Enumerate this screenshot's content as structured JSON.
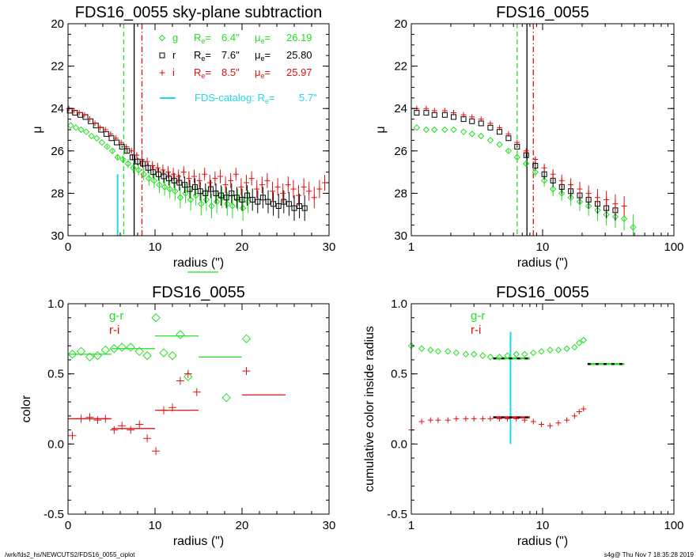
{
  "colors": {
    "g": "#22e022",
    "r": "#000000",
    "i": "#e01010",
    "catalog": "#22d8e8"
  },
  "footer": {
    "left": "/wrk/fds2_hs/NEWCUTS2/FDS16_0055_ciplot",
    "right": "s4g@  Thu Nov  7 18:35:28 2019"
  },
  "chart_data": [
    {
      "type": "scatter",
      "title": "FDS16_0055 sky-plane subtraction",
      "xlabel": "radius (\")",
      "ylabel": "μ",
      "xlim": [
        0,
        30
      ],
      "ylim": [
        30,
        20
      ],
      "xscale": "linear",
      "xticks": [
        0,
        10,
        20,
        30
      ],
      "yticks": [
        20,
        22,
        24,
        26,
        28,
        30
      ],
      "legend": {
        "entries": [
          {
            "band": "g",
            "marker": "diamond",
            "Re": "6.4\"",
            "mue": "26.19"
          },
          {
            "band": "r",
            "marker": "square",
            "Re": "7.6\"",
            "mue": "25.80"
          },
          {
            "band": "i",
            "marker": "plus",
            "Re": "8.5\"",
            "mue": "25.97"
          }
        ],
        "catalog_label": "FDS-catalog: R",
        "catalog_value": "5.7\""
      },
      "vlines": [
        {
          "x": 6.4,
          "band": "g",
          "style": "dashed"
        },
        {
          "x": 7.6,
          "band": "r",
          "style": "solid"
        },
        {
          "x": 8.5,
          "band": "i",
          "style": "dashdot"
        }
      ],
      "catalog_line": {
        "x": 5.7,
        "y_from": 27.1,
        "y_to": 30
      },
      "series": [
        {
          "band": "g",
          "x": [
            0.3,
            0.9,
            1.5,
            2.1,
            2.7,
            3.3,
            3.9,
            4.5,
            5.1,
            5.7,
            6.3,
            6.9,
            7.5,
            8.1,
            8.7,
            9.3,
            9.9,
            10.5,
            11.1,
            11.7,
            12.3,
            12.9,
            13.5,
            14.1,
            14.7,
            15.3,
            15.9,
            16.5,
            17.1,
            17.7,
            18.3,
            18.9,
            19.5,
            20.1,
            20.7
          ],
          "y": [
            24.8,
            24.9,
            25.0,
            25.1,
            25.3,
            25.4,
            25.6,
            25.8,
            26.0,
            26.3,
            26.4,
            26.6,
            26.8,
            26.9,
            27.1,
            27.3,
            27.4,
            27.6,
            27.7,
            27.8,
            27.9,
            28.2,
            28.0,
            28.3,
            28.1,
            28.5,
            28.3,
            28.6,
            28.4,
            28.2,
            28.5,
            28.6,
            28.3,
            28.7,
            28.4
          ]
        },
        {
          "band": "r",
          "x": [
            0.2,
            0.8,
            1.4,
            2.0,
            2.6,
            3.2,
            3.8,
            4.4,
            5.0,
            5.6,
            6.2,
            6.8,
            7.4,
            8.0,
            8.6,
            9.2,
            9.8,
            10.4,
            11.0,
            11.6,
            12.2,
            12.8,
            13.4,
            14.0,
            14.6,
            15.2,
            15.8,
            16.4,
            17.0,
            17.6,
            18.2,
            18.8,
            19.4,
            20.0,
            20.6,
            21.2,
            21.8,
            22.4,
            23.0,
            23.6,
            24.2,
            24.8,
            25.4,
            26.0,
            26.6,
            27.2
          ],
          "y": [
            24.1,
            24.2,
            24.3,
            24.4,
            24.6,
            24.8,
            25.0,
            25.2,
            25.4,
            25.6,
            25.8,
            26.0,
            26.3,
            26.5,
            26.6,
            26.8,
            27.0,
            27.1,
            27.2,
            27.3,
            27.4,
            27.5,
            27.6,
            27.8,
            27.7,
            27.9,
            28.0,
            27.8,
            28.0,
            28.1,
            28.2,
            28.0,
            28.2,
            28.3,
            28.1,
            28.3,
            28.4,
            28.2,
            28.4,
            28.5,
            28.6,
            28.4,
            28.5,
            28.7,
            28.6,
            28.7
          ]
        },
        {
          "band": "i",
          "x": [
            0.1,
            0.7,
            1.3,
            1.9,
            2.5,
            3.1,
            3.7,
            4.3,
            4.9,
            5.5,
            6.1,
            6.7,
            7.3,
            7.9,
            8.5,
            9.1,
            9.7,
            10.3,
            10.9,
            11.5,
            12.1,
            12.7,
            13.3,
            13.9,
            14.5,
            15.1,
            15.7,
            16.3,
            16.9,
            17.5,
            18.1,
            18.7,
            19.3,
            19.9,
            20.5,
            21.1,
            21.7,
            22.3,
            22.9,
            23.5,
            24.1,
            24.7,
            25.3,
            25.9,
            26.5,
            27.1,
            27.7,
            28.3,
            28.9,
            29.5
          ],
          "y": [
            24.0,
            24.1,
            24.2,
            24.3,
            24.5,
            24.7,
            24.9,
            25.0,
            25.2,
            25.4,
            25.6,
            25.8,
            26.0,
            26.2,
            26.4,
            26.5,
            26.7,
            26.8,
            26.9,
            27.0,
            27.1,
            27.2,
            27.0,
            27.3,
            27.2,
            27.4,
            27.1,
            27.5,
            27.3,
            27.2,
            27.6,
            27.4,
            27.1,
            27.7,
            27.5,
            27.3,
            27.8,
            27.6,
            27.4,
            27.9,
            27.7,
            28.0,
            27.6,
            27.8,
            28.1,
            27.7,
            27.9,
            28.2,
            27.8,
            27.5
          ]
        }
      ]
    },
    {
      "type": "scatter",
      "title": "FDS16_0055",
      "xlabel": "radius (\")",
      "ylabel": "μ",
      "xlim": [
        1,
        100
      ],
      "ylim": [
        30,
        20
      ],
      "xscale": "log",
      "xticks": [
        1,
        10,
        100
      ],
      "yticks": [
        20,
        22,
        24,
        26,
        28,
        30
      ],
      "vlines": [
        {
          "x": 6.4,
          "band": "g",
          "style": "dashed"
        },
        {
          "x": 7.6,
          "band": "r",
          "style": "solid"
        },
        {
          "x": 8.5,
          "band": "i",
          "style": "dashdot"
        }
      ],
      "series": [
        {
          "band": "g",
          "x": [
            1.1,
            1.3,
            1.5,
            1.8,
            2.1,
            2.5,
            2.9,
            3.4,
            4.0,
            4.7,
            5.5,
            6.4,
            7.5,
            8.8,
            10.3,
            12.0,
            14.0,
            16.4,
            19.2,
            22.4,
            26.2,
            30.6,
            35.8,
            41.8,
            48.9
          ],
          "y": [
            24.9,
            25.0,
            25.0,
            25.0,
            25.0,
            25.1,
            25.2,
            25.3,
            25.5,
            25.7,
            26.0,
            26.3,
            26.6,
            27.0,
            27.4,
            27.8,
            28.0,
            28.2,
            28.4,
            28.6,
            28.8,
            29.0,
            29.1,
            29.2,
            29.6
          ]
        },
        {
          "band": "r",
          "x": [
            1.1,
            1.3,
            1.5,
            1.8,
            2.1,
            2.5,
            2.9,
            3.4,
            4.0,
            4.7,
            5.5,
            6.4,
            7.5,
            8.8,
            10.3,
            12.0,
            14.0,
            16.4,
            19.2,
            22.4,
            26.2,
            30.6,
            35.8
          ],
          "y": [
            24.2,
            24.2,
            24.3,
            24.3,
            24.4,
            24.5,
            24.6,
            24.7,
            24.9,
            25.1,
            25.4,
            25.8,
            26.2,
            26.7,
            27.1,
            27.4,
            27.7,
            27.9,
            28.1,
            28.3,
            28.5,
            28.7,
            28.8
          ]
        },
        {
          "band": "i",
          "x": [
            1.1,
            1.3,
            1.5,
            1.8,
            2.1,
            2.5,
            2.9,
            3.4,
            4.0,
            4.7,
            5.5,
            6.4,
            7.5,
            8.8,
            10.3,
            12.0,
            14.0,
            16.4,
            19.2,
            22.4,
            26.2,
            30.6,
            35.8,
            41.8
          ],
          "y": [
            24.0,
            24.0,
            24.1,
            24.1,
            24.2,
            24.3,
            24.4,
            24.5,
            24.7,
            24.9,
            25.2,
            25.6,
            26.0,
            26.4,
            26.8,
            27.1,
            27.4,
            27.6,
            27.8,
            28.0,
            28.2,
            28.3,
            28.5,
            28.6
          ]
        }
      ]
    },
    {
      "type": "scatter",
      "title": "FDS16_0055",
      "xlabel": "radius (\")",
      "ylabel": "color",
      "xlim": [
        0,
        30
      ],
      "ylim": [
        -0.5,
        1.0
      ],
      "xscale": "linear",
      "xticks": [
        0,
        10,
        20,
        30
      ],
      "yticks": [
        -0.5,
        0.0,
        0.5,
        1.0
      ],
      "legend": {
        "entries": [
          "g-r",
          "r-i"
        ]
      },
      "series": [
        {
          "name": "g-r",
          "x": [
            0.5,
            1.5,
            2.5,
            3.4,
            4.3,
            5.3,
            6.2,
            7.2,
            8.2,
            9.1,
            10.1,
            11.0,
            12.0,
            12.9,
            13.8,
            18.2,
            20.5
          ],
          "y": [
            0.64,
            0.66,
            0.62,
            0.63,
            0.67,
            0.68,
            0.69,
            0.69,
            0.66,
            0.63,
            0.9,
            0.65,
            0.63,
            0.78,
            0.48,
            0.33,
            0.75
          ]
        },
        {
          "name": "r-i",
          "x": [
            0.5,
            1.5,
            2.5,
            3.4,
            4.3,
            5.3,
            6.2,
            7.2,
            8.2,
            9.1,
            10.1,
            11.0,
            12.0,
            12.9,
            13.8,
            14.8,
            20.5
          ],
          "y": [
            0.06,
            0.18,
            0.19,
            0.17,
            0.18,
            0.1,
            0.13,
            0.1,
            0.14,
            0.04,
            -0.05,
            0.24,
            0.26,
            0.45,
            0.5,
            0.37,
            0.52
          ]
        }
      ],
      "bin_averages": [
        {
          "name": "g-r",
          "x_from": 0,
          "x_to": 5,
          "y": 0.64
        },
        {
          "name": "g-r",
          "x_from": 5,
          "x_to": 10,
          "y": 0.68
        },
        {
          "name": "g-r",
          "x_from": 10,
          "x_to": 15,
          "y": 0.77
        },
        {
          "name": "g-r",
          "x_from": 15,
          "x_to": 20,
          "y": 0.62
        },
        {
          "name": "r-i",
          "x_from": 0,
          "x_to": 5,
          "y": 0.18
        },
        {
          "name": "r-i",
          "x_from": 5,
          "x_to": 10,
          "y": 0.11
        },
        {
          "name": "r-i",
          "x_from": 10,
          "x_to": 15,
          "y": 0.24
        },
        {
          "name": "r-i",
          "x_from": 20,
          "x_to": 25,
          "y": 0.35
        }
      ]
    },
    {
      "type": "scatter",
      "title": "FDS16_0055",
      "xlabel": "radius (\")",
      "ylabel": "cumulative color inside radius",
      "xlim": [
        1,
        100
      ],
      "ylim": [
        -0.5,
        1.0
      ],
      "xscale": "log",
      "xticks": [
        1,
        10,
        100
      ],
      "yticks": [
        -0.5,
        0.0,
        0.5,
        1.0
      ],
      "legend": {
        "entries": [
          "g-r",
          "r-i"
        ]
      },
      "catalog_line": {
        "x": 5.7,
        "y_from": 0.0,
        "y_to": 0.8
      },
      "series": [
        {
          "name": "g-r",
          "x": [
            1.0,
            1.2,
            1.4,
            1.6,
            1.9,
            2.2,
            2.6,
            3.0,
            3.5,
            4.0,
            4.7,
            5.4,
            6.3,
            7.3,
            8.5,
            9.8,
            11.4,
            13.2,
            15.3,
            17.5,
            19.0,
            20.5
          ],
          "y": [
            0.7,
            0.68,
            0.67,
            0.66,
            0.66,
            0.65,
            0.64,
            0.64,
            0.63,
            0.62,
            0.62,
            0.63,
            0.64,
            0.64,
            0.65,
            0.66,
            0.67,
            0.67,
            0.68,
            0.69,
            0.72,
            0.74
          ]
        },
        {
          "name": "r-i",
          "x": [
            1.0,
            1.2,
            1.4,
            1.6,
            1.9,
            2.2,
            2.6,
            3.0,
            3.5,
            4.0,
            4.7,
            5.4,
            6.3,
            7.3,
            8.5,
            9.8,
            11.4,
            13.2,
            15.3,
            17.5,
            19.0,
            20.5
          ],
          "y": [
            0.1,
            0.16,
            0.17,
            0.17,
            0.17,
            0.18,
            0.18,
            0.18,
            0.18,
            0.18,
            0.18,
            0.18,
            0.18,
            0.17,
            0.16,
            0.14,
            0.13,
            0.15,
            0.17,
            0.2,
            0.23,
            0.25
          ]
        }
      ],
      "bin_averages": [
        {
          "name": "g-r",
          "x_from": 4.2,
          "x_to": 8.0,
          "y": 0.61
        },
        {
          "name": "g-r",
          "x_from": 22,
          "x_to": 42,
          "y": 0.57
        },
        {
          "name": "r-i",
          "x_from": 4.2,
          "x_to": 8.0,
          "y": 0.19
        }
      ]
    }
  ]
}
